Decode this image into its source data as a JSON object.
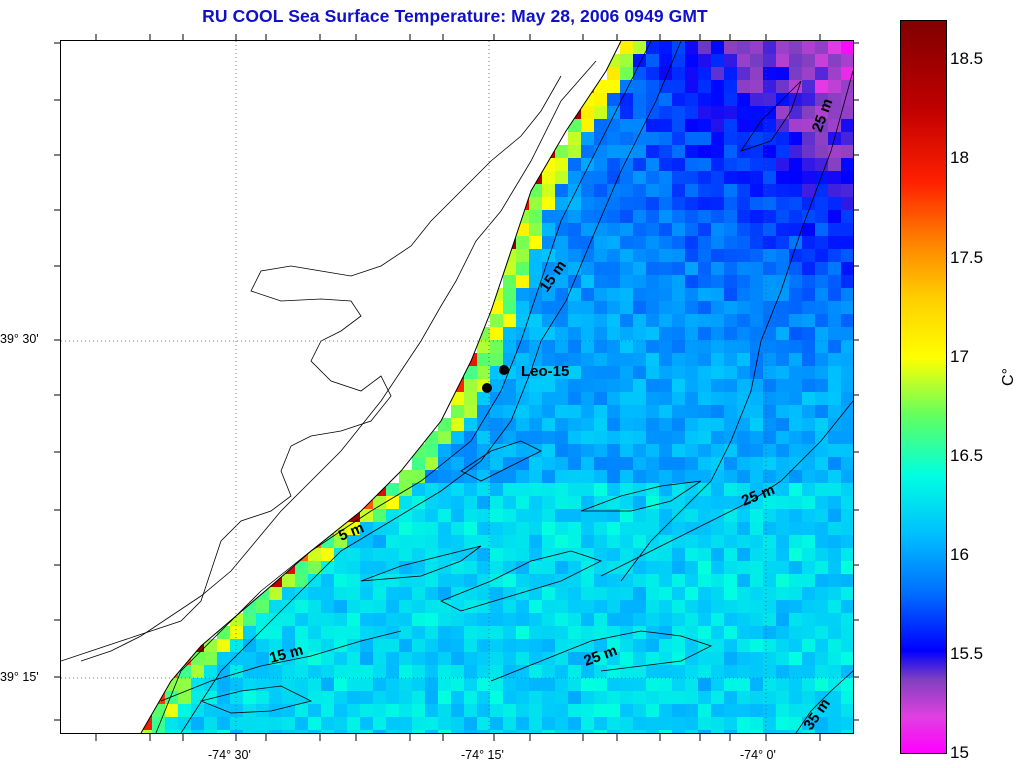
{
  "title": "RU COOL  Sea Surface Temperature:  May 28, 2006 0949 GMT",
  "lat_ticks": [
    "39° 30'",
    "39° 15'"
  ],
  "lon_ticks": [
    "-74° 30'",
    "-74° 15'",
    "-74° 0'"
  ],
  "colorbar": {
    "labels": [
      "18.5",
      "18",
      "17.5",
      "17",
      "16.5",
      "16",
      "15.5",
      "15"
    ],
    "min": 15,
    "max": 18.7,
    "unit": "C°"
  },
  "station": {
    "name": "Leo-15"
  },
  "contour_labels": [
    {
      "text": "5 m"
    },
    {
      "text": "15 m"
    },
    {
      "text": "15 m"
    },
    {
      "text": "25 m"
    },
    {
      "text": "25 m"
    },
    {
      "text": "25 m"
    },
    {
      "text": "35 m"
    }
  ]
}
